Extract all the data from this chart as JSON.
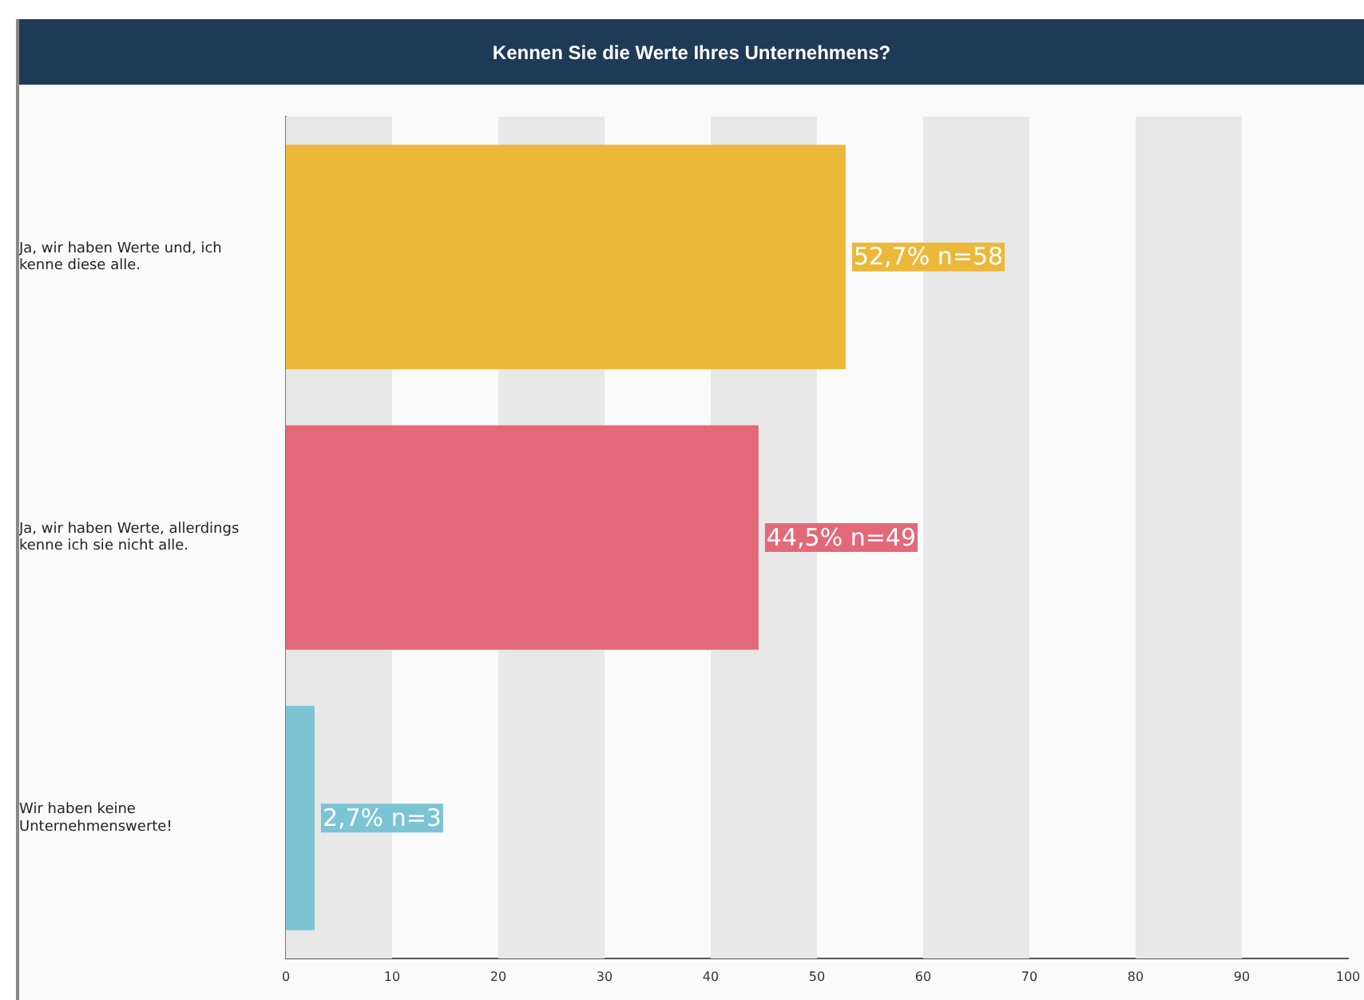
{
  "chart_data": {
    "type": "bar",
    "orientation": "horizontal",
    "title": "Kennen Sie die Werte Ihres Unternehmens?",
    "categories": [
      "Ja, wir haben Werte und, ich kenne diese alle.",
      "Ja, wir haben Werte, allerdings kenne ich sie nicht alle.",
      "Wir haben keine Unternehmenswerte!"
    ],
    "values": [
      52.7,
      44.5,
      2.7
    ],
    "colors": [
      "#ecb83a",
      "#e36879",
      "#7cc4d4"
    ],
    "value_labels": [
      "52,7% n=58",
      "44,5% n=49",
      "2,7% n=3"
    ],
    "xlim": [
      0,
      100
    ],
    "xticks": [
      0,
      10,
      20,
      30,
      40,
      50,
      60,
      70,
      80,
      90,
      100
    ],
    "bands": [
      {
        "axis": "x",
        "from": 0,
        "to": 10,
        "color": "#e8e8e8"
      },
      {
        "axis": "x",
        "from": 20,
        "to": 30,
        "color": "#e8e8e8"
      },
      {
        "axis": "x",
        "from": 40,
        "to": 50,
        "color": "#e8e8e8"
      },
      {
        "axis": "x",
        "from": 60,
        "to": 70,
        "color": "#e8e8e8"
      },
      {
        "axis": "x",
        "from": 80,
        "to": 90,
        "color": "#e8e8e8"
      }
    ],
    "legend": false
  }
}
